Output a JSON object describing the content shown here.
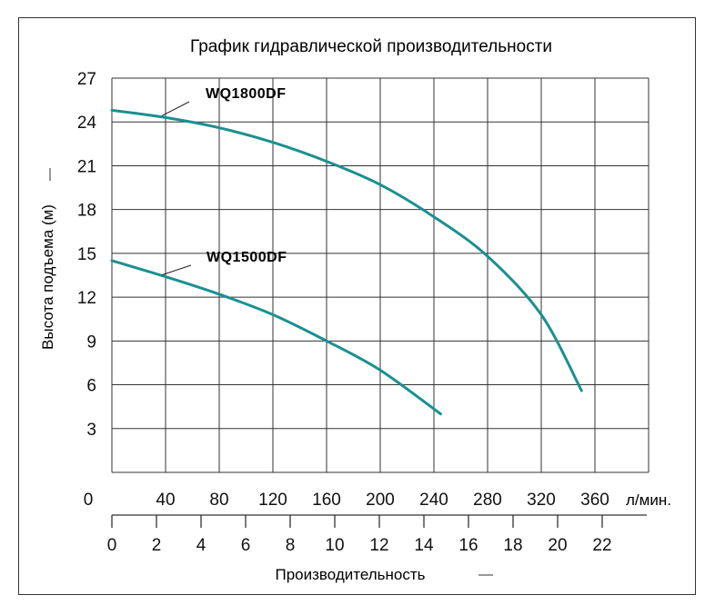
{
  "chart_data": {
    "type": "line",
    "title": "График гидравлической производительности",
    "ylabel": "Высота подъема (м)",
    "xlabel": "Производительность",
    "x_units_lpm": "л/мин.",
    "x_zero_label_lpm": "0",
    "x_ticks_lpm": [
      40,
      80,
      120,
      160,
      200,
      240,
      280,
      320,
      360
    ],
    "x_ticks_m3h": [
      0,
      2,
      4,
      6,
      8,
      10,
      12,
      14,
      16,
      18,
      20,
      22
    ],
    "y_ticks": [
      3,
      6,
      9,
      12,
      15,
      18,
      21,
      24,
      27
    ],
    "xlim_lpm": [
      0,
      400
    ],
    "ylim": [
      0,
      27
    ],
    "grid": true,
    "series": [
      {
        "name": "WQ1800DF",
        "color": "#1a9090",
        "x": [
          0,
          40,
          80,
          120,
          160,
          200,
          240,
          280,
          320,
          350
        ],
        "y": [
          24.8,
          24.3,
          23.6,
          22.6,
          21.3,
          19.7,
          17.5,
          14.8,
          10.8,
          5.6
        ]
      },
      {
        "name": "WQ1500DF",
        "color": "#1a9090",
        "x": [
          0,
          40,
          80,
          120,
          160,
          200,
          245
        ],
        "y": [
          14.5,
          13.4,
          12.2,
          10.8,
          9.0,
          7.0,
          4.0
        ]
      }
    ]
  }
}
